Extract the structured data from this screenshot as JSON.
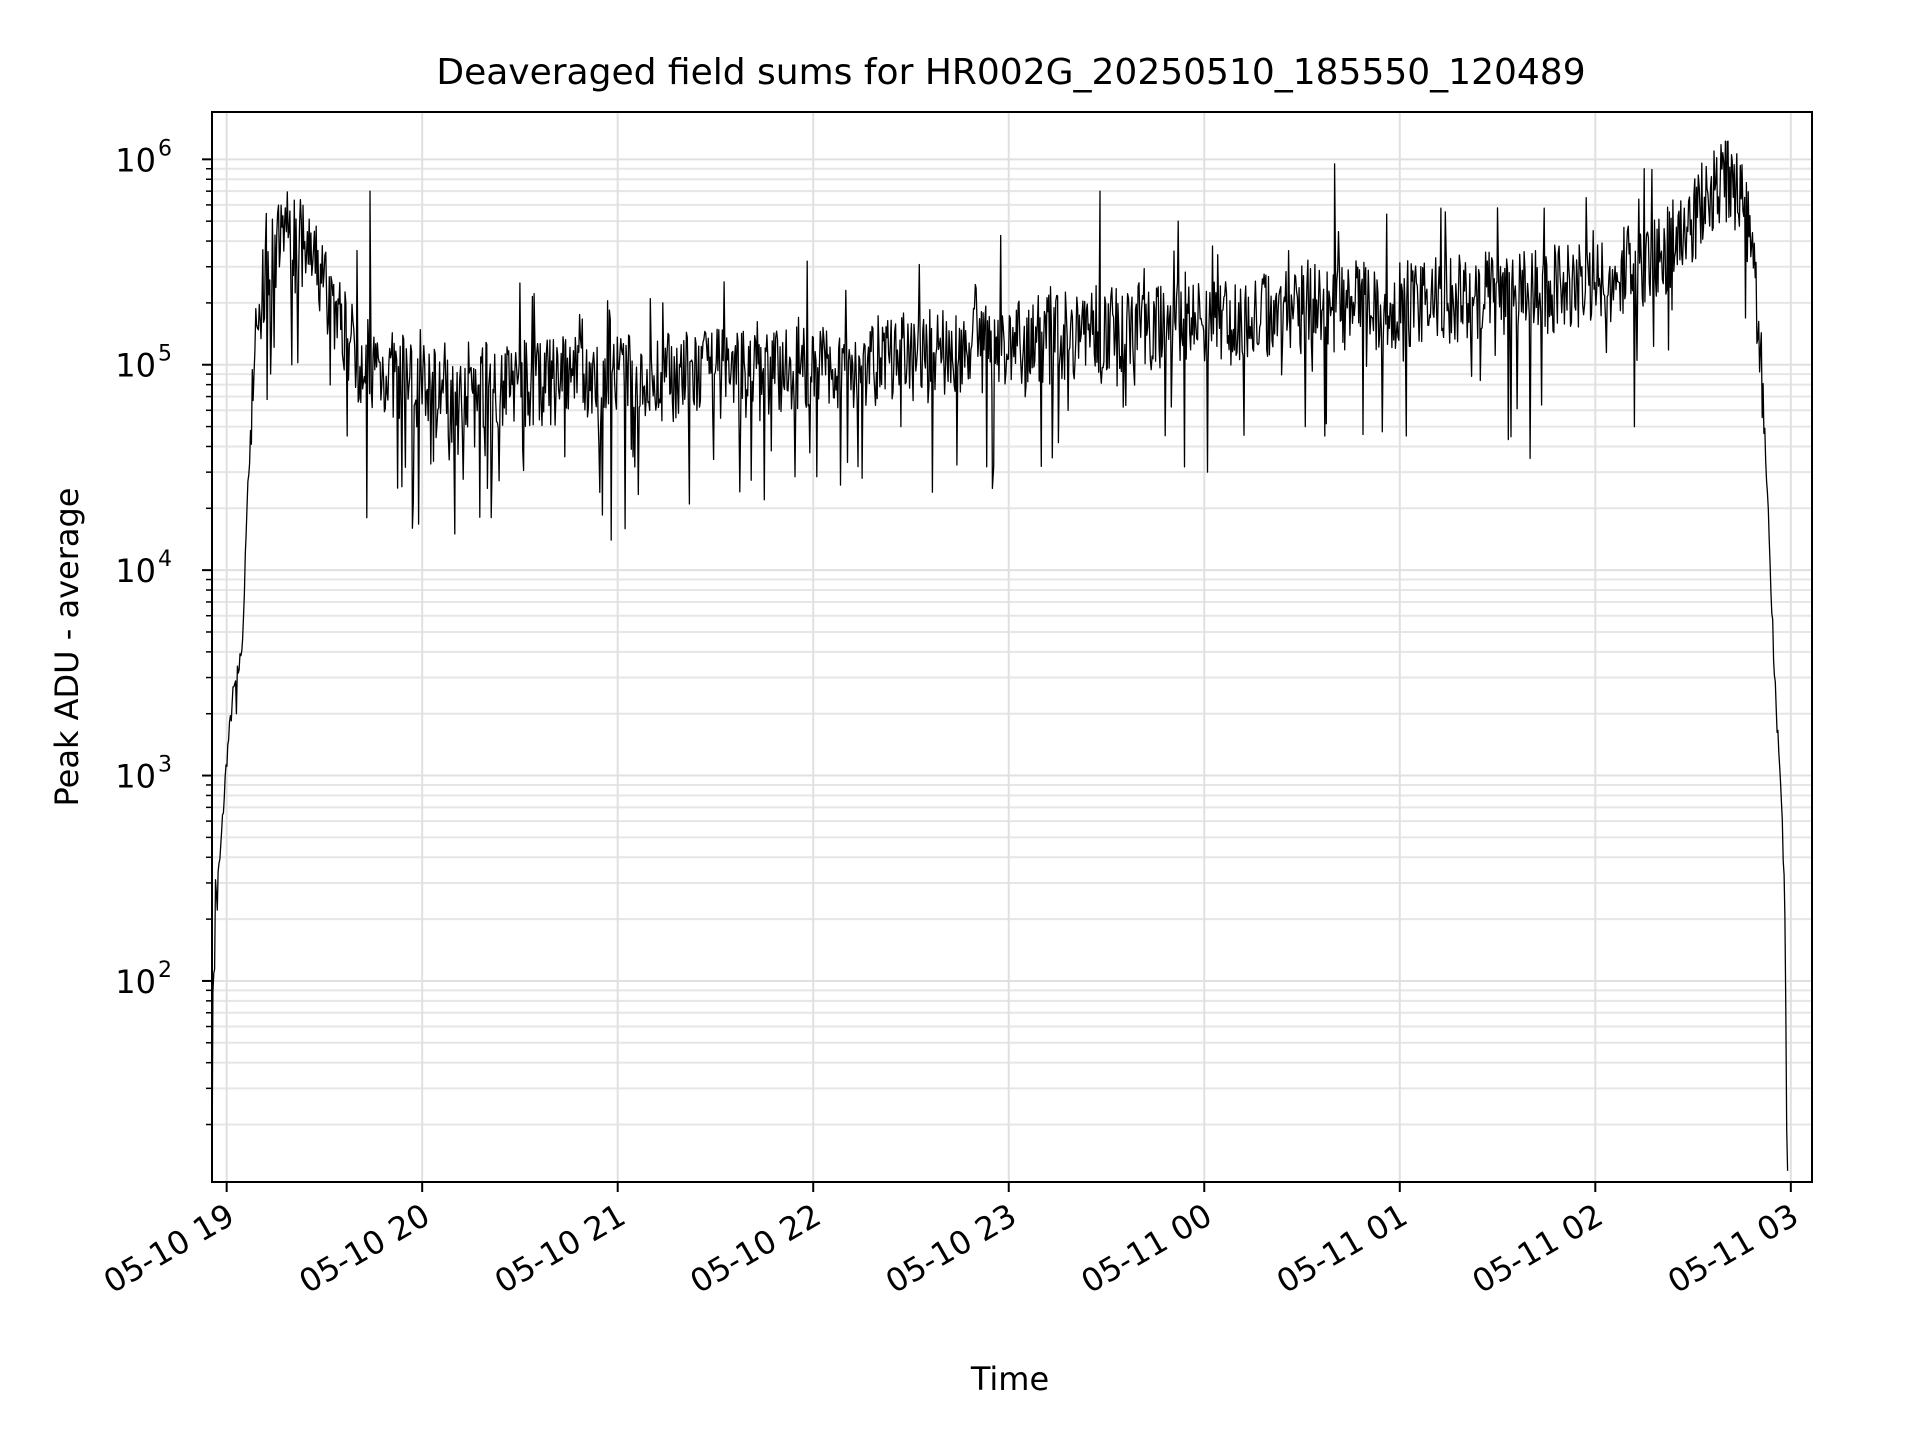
{
  "chart_data": {
    "type": "line",
    "title": "Deaveraged field sums for HR002G_20250510_185550_120489",
    "xlabel": "Time",
    "ylabel": "Peak ADU - average",
    "y_scale": "log",
    "ylim": [
      10.5,
      1700000
    ],
    "xlim": [
      "2025-05-10 18:55:30",
      "2025-05-11 03:06:30"
    ],
    "grid": true,
    "grid_minor": true,
    "x_ticks": [
      {
        "t": "2025-05-10 19:00",
        "label": "05-10 19"
      },
      {
        "t": "2025-05-10 20:00",
        "label": "05-10 20"
      },
      {
        "t": "2025-05-10 21:00",
        "label": "05-10 21"
      },
      {
        "t": "2025-05-10 22:00",
        "label": "05-10 22"
      },
      {
        "t": "2025-05-10 23:00",
        "label": "05-10 23"
      },
      {
        "t": "2025-05-11 00:00",
        "label": "05-11 00"
      },
      {
        "t": "2025-05-11 01:00",
        "label": "05-11 01"
      },
      {
        "t": "2025-05-11 02:00",
        "label": "05-11 02"
      },
      {
        "t": "2025-05-11 03:00",
        "label": "05-11 03"
      }
    ],
    "y_ticks": [
      {
        "value": 100,
        "base": "10",
        "exp": "2"
      },
      {
        "value": 1000,
        "base": "10",
        "exp": "3"
      },
      {
        "value": 10000,
        "base": "10",
        "exp": "4"
      },
      {
        "value": 100000,
        "base": "10",
        "exp": "5"
      },
      {
        "value": 1000000,
        "base": "10",
        "exp": "6"
      }
    ],
    "series": [
      {
        "color": "#000000",
        "points": [
          [
            "2025-05-10 18:55:30",
            11
          ],
          [
            "2025-05-10 18:56:00",
            150
          ],
          [
            "2025-05-10 18:57:00",
            280
          ],
          [
            "2025-05-10 18:58:00",
            400
          ],
          [
            "2025-05-10 18:59:00",
            700
          ],
          [
            "2025-05-10 19:00:00",
            1200
          ],
          [
            "2025-05-10 19:02:00",
            2500
          ],
          [
            "2025-05-10 19:04:00",
            3500
          ],
          [
            "2025-05-10 19:05:00",
            5000
          ],
          [
            "2025-05-10 19:06:00",
            15000
          ],
          [
            "2025-05-10 19:07:00",
            40000
          ],
          [
            "2025-05-10 19:08:00",
            90000
          ],
          [
            "2025-05-10 19:10:00",
            180000
          ],
          [
            "2025-05-10 19:12:00",
            260000
          ],
          [
            "2025-05-10 19:15:00",
            350000
          ],
          [
            "2025-05-10 19:18:00",
            450000
          ],
          [
            "2025-05-10 19:22:00",
            400000
          ],
          [
            "2025-05-10 19:26:00",
            320000
          ],
          [
            "2025-05-10 19:30:00",
            250000
          ],
          [
            "2025-05-10 19:35:00",
            160000
          ],
          [
            "2025-05-10 19:40:00",
            110000
          ],
          [
            "2025-05-10 19:50:00",
            90000
          ],
          [
            "2025-05-10 20:00:00",
            80000
          ],
          [
            "2025-05-10 20:30:00",
            80000
          ],
          [
            "2025-05-10 21:00:00",
            85000
          ],
          [
            "2025-05-10 21:30:00",
            90000
          ],
          [
            "2025-05-10 22:00:00",
            95000
          ],
          [
            "2025-05-10 22:30:00",
            110000
          ],
          [
            "2025-05-10 23:00:00",
            125000
          ],
          [
            "2025-05-10 23:30:00",
            150000
          ],
          [
            "2025-05-11 00:00:00",
            165000
          ],
          [
            "2025-05-11 00:30:00",
            185000
          ],
          [
            "2025-05-11 01:00:00",
            200000
          ],
          [
            "2025-05-11 01:30:00",
            215000
          ],
          [
            "2025-05-11 02:00:00",
            250000
          ],
          [
            "2025-05-11 02:20:00",
            330000
          ],
          [
            "2025-05-11 02:30:00",
            500000
          ],
          [
            "2025-05-11 02:35:00",
            720000
          ],
          [
            "2025-05-11 02:40:00",
            780000
          ],
          [
            "2025-05-11 02:45:00",
            650000
          ],
          [
            "2025-05-11 02:48:00",
            350000
          ],
          [
            "2025-05-11 02:51:00",
            90000
          ],
          [
            "2025-05-11 02:53:00",
            20000
          ],
          [
            "2025-05-11 02:55:00",
            3000
          ],
          [
            "2025-05-11 02:57:00",
            800
          ],
          [
            "2025-05-11 02:58:00",
            300
          ],
          [
            "2025-05-11 02:59:00",
            11
          ]
        ],
        "spikes_up": [
          [
            "2025-05-10 19:18:00",
            580000
          ],
          [
            "2025-05-10 19:44:00",
            700000
          ],
          [
            "2025-05-10 19:40:00",
            360000
          ],
          [
            "2025-05-10 20:30:00",
            250000
          ],
          [
            "2025-05-10 21:10:00",
            210000
          ],
          [
            "2025-05-10 22:10:00",
            230000
          ],
          [
            "2025-05-10 23:28:00",
            700000
          ],
          [
            "2025-05-10 23:52:00",
            500000
          ],
          [
            "2025-05-11 00:40:00",
            950000
          ],
          [
            "2025-05-11 01:30:00",
            580000
          ],
          [
            "2025-05-11 02:15:00",
            900000
          ],
          [
            "2025-05-11 02:42:00",
            990000
          ]
        ],
        "spikes_down": [
          [
            "2025-05-10 19:03:00",
            2000
          ],
          [
            "2025-05-10 19:20:00",
            100000
          ],
          [
            "2025-05-10 19:37:00",
            45000
          ],
          [
            "2025-05-10 19:43:00",
            18000
          ],
          [
            "2025-05-10 19:57:00",
            16000
          ],
          [
            "2025-05-10 20:10:00",
            15000
          ],
          [
            "2025-05-10 20:20:00",
            25000
          ],
          [
            "2025-05-10 20:58:00",
            14000
          ],
          [
            "2025-05-10 21:22:00",
            21000
          ],
          [
            "2025-05-10 21:45:00",
            22000
          ],
          [
            "2025-05-10 22:15:00",
            28000
          ],
          [
            "2025-05-10 22:55:00",
            25000
          ],
          [
            "2025-05-10 23:10:00",
            32000
          ],
          [
            "2025-05-11 00:01:00",
            30000
          ],
          [
            "2025-05-11 00:37:00",
            45000
          ],
          [
            "2025-05-11 01:02:00",
            45000
          ],
          [
            "2025-05-11 01:40:00",
            35000
          ],
          [
            "2025-05-11 02:12:00",
            50000
          ]
        ]
      }
    ]
  }
}
